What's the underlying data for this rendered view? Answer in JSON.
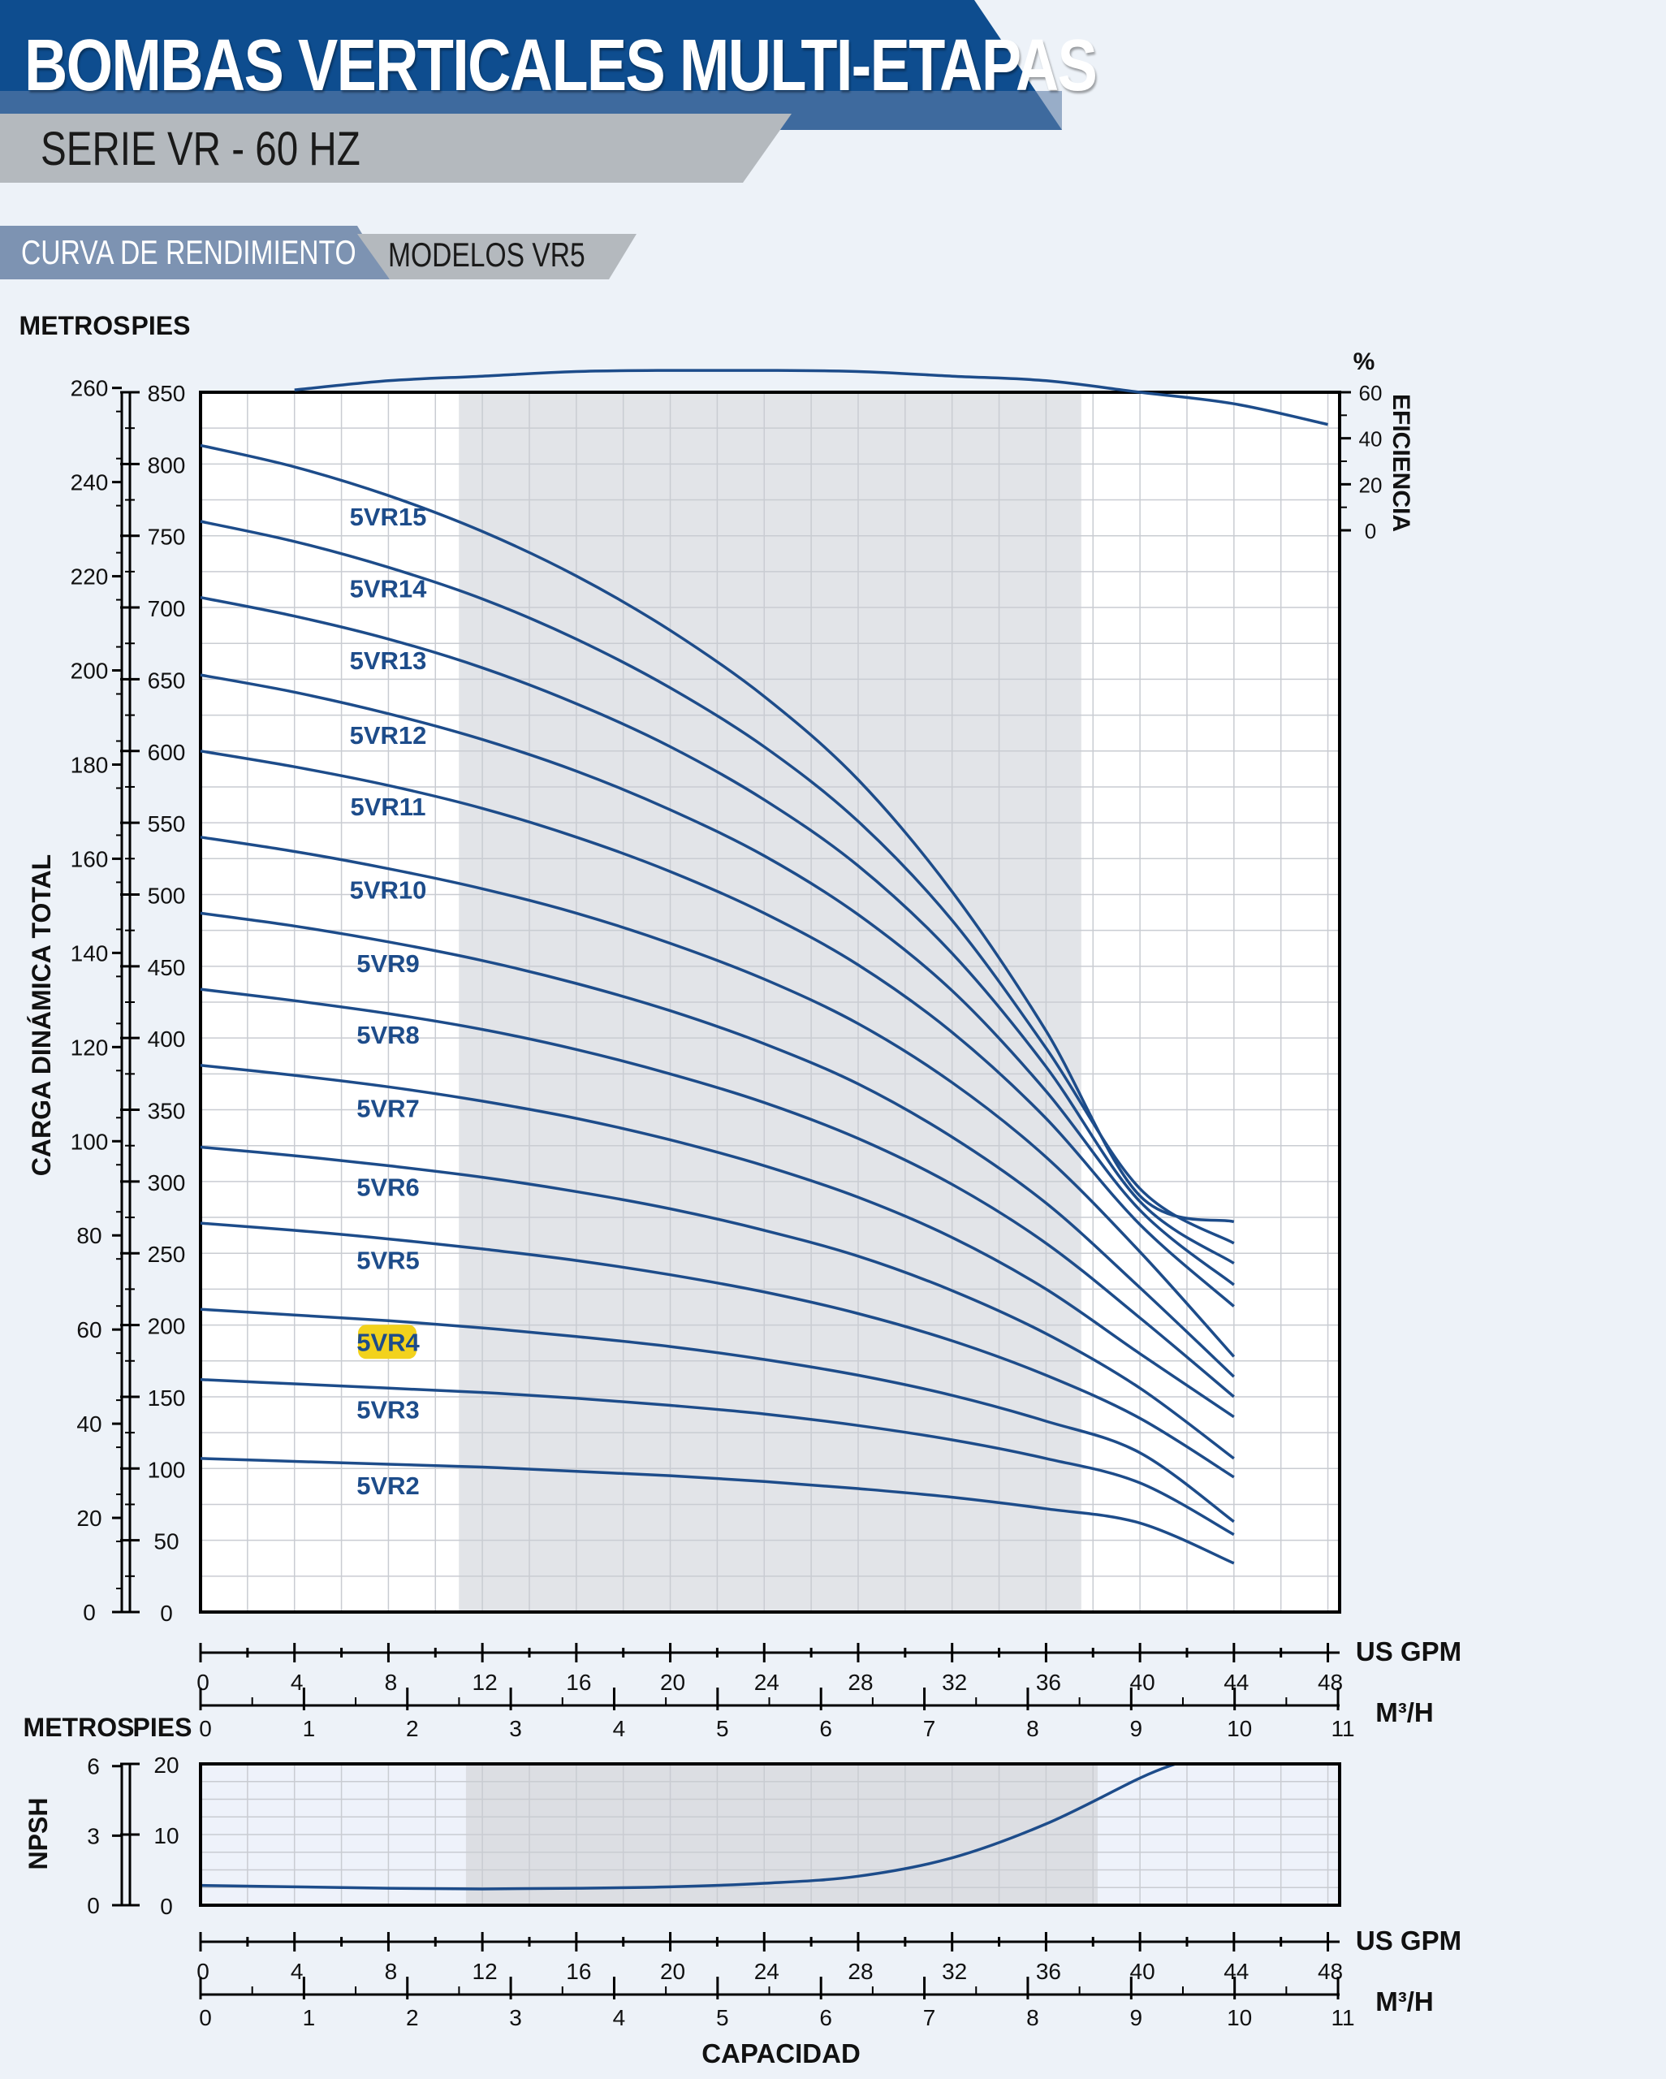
{
  "header": {
    "title": "BOMBAS VERTICALES MULTI-ETAPAS",
    "subtitle": "SERIE VR - 60 HZ",
    "tab_curve": "CURVA DE RENDIMIENTO",
    "tab_models": "MODELOS VR5"
  },
  "colors": {
    "curve": "#1d4c8a",
    "banner_blue": "#0e4d8f",
    "banner_gray": "#b4b9be",
    "tab_blue": "#7d93b2",
    "highlight": "#f2d21c",
    "shade": "#e2e4e8"
  },
  "chart_data": [
    {
      "type": "line",
      "title": "",
      "ylabel": "CARGA DINÁMICA TOTAL",
      "y_unit_labels": [
        "METROS",
        "PIES"
      ],
      "y_meters_ticks": [
        "0",
        "20",
        "40",
        "60",
        "80",
        "100",
        "120",
        "140",
        "160",
        "180",
        "200",
        "220",
        "240",
        "260"
      ],
      "y_feet_ticks": [
        "0",
        "50",
        "100",
        "150",
        "200",
        "250",
        "300",
        "350",
        "400",
        "450",
        "500",
        "550",
        "600",
        "650",
        "700",
        "750",
        "800",
        "850"
      ],
      "ylim_feet": [
        0,
        850
      ],
      "xlabel_gpm": "US GPM",
      "xlabel_m3h": "M³/H",
      "x_gpm_ticks": [
        "0",
        "4",
        "8",
        "12",
        "16",
        "20",
        "24",
        "28",
        "32",
        "36",
        "40",
        "44",
        "48"
      ],
      "x_m3h_ticks": [
        "0",
        "1",
        "2",
        "3",
        "4",
        "5",
        "6",
        "7",
        "8",
        "9",
        "10",
        "11"
      ],
      "xlim_gpm": [
        0,
        48.5
      ],
      "recommended_range_gpm": [
        11,
        37.5
      ],
      "head_unit": "feet",
      "efficiency_axis": {
        "label": "EFICIENCIA",
        "unit": "%",
        "ticks": [
          "0",
          "20",
          "40",
          "60"
        ]
      },
      "highlighted_series": "5VR4",
      "series": [
        {
          "name": "5VR15",
          "x": [
            0,
            4,
            8,
            12,
            16,
            20,
            24,
            28,
            32,
            36,
            40,
            44
          ],
          "values": [
            813,
            798,
            778,
            753,
            722,
            684,
            638,
            580,
            502,
            405,
            290,
            272
          ]
        },
        {
          "name": "5VR14",
          "x": [
            0,
            4,
            8,
            12,
            16,
            20,
            24,
            28,
            32,
            36,
            40,
            44
          ],
          "values": [
            760,
            746,
            728,
            706,
            678,
            644,
            603,
            551,
            482,
            393,
            295,
            257
          ]
        },
        {
          "name": "5VR13",
          "x": [
            0,
            4,
            8,
            12,
            16,
            20,
            24,
            28,
            32,
            36,
            40,
            44
          ],
          "values": [
            707,
            694,
            678,
            658,
            633,
            603,
            566,
            520,
            459,
            380,
            286,
            243
          ]
        },
        {
          "name": "5VR12",
          "x": [
            0,
            4,
            8,
            12,
            16,
            20,
            24,
            28,
            32,
            36,
            40,
            44
          ],
          "values": [
            653,
            641,
            626,
            608,
            586,
            559,
            527,
            486,
            433,
            363,
            280,
            228
          ]
        },
        {
          "name": "5VR11",
          "x": [
            0,
            4,
            8,
            12,
            16,
            20,
            24,
            28,
            32,
            36,
            40,
            44
          ],
          "values": [
            600,
            589,
            576,
            560,
            540,
            516,
            487,
            451,
            404,
            344,
            270,
            213
          ]
        },
        {
          "name": "5VR10",
          "x": [
            0,
            4,
            8,
            12,
            16,
            20,
            24,
            28,
            32,
            36,
            40,
            44
          ],
          "values": [
            540,
            530,
            518,
            504,
            487,
            466,
            441,
            410,
            369,
            317,
            251,
            178
          ]
        },
        {
          "name": "5VR9",
          "x": [
            0,
            4,
            8,
            12,
            16,
            20,
            24,
            28,
            32,
            36,
            40,
            44
          ],
          "values": [
            487,
            478,
            467,
            454,
            438,
            419,
            396,
            368,
            331,
            285,
            226,
            164
          ]
        },
        {
          "name": "5VR8",
          "x": [
            0,
            4,
            8,
            12,
            16,
            20,
            24,
            28,
            32,
            36,
            40,
            44
          ],
          "values": [
            434,
            426,
            417,
            406,
            392,
            375,
            355,
            330,
            298,
            257,
            205,
            150
          ]
        },
        {
          "name": "5VR7",
          "x": [
            0,
            4,
            8,
            12,
            16,
            20,
            24,
            28,
            32,
            36,
            40,
            44
          ],
          "values": [
            381,
            374,
            366,
            356,
            344,
            329,
            311,
            289,
            261,
            225,
            180,
            136
          ]
        },
        {
          "name": "5VR6",
          "x": [
            0,
            4,
            8,
            12,
            16,
            20,
            24,
            28,
            32,
            36,
            40,
            44
          ],
          "values": [
            324,
            318,
            311,
            303,
            293,
            281,
            266,
            248,
            224,
            194,
            156,
            107
          ]
        },
        {
          "name": "5VR5",
          "x": [
            0,
            4,
            8,
            12,
            16,
            20,
            24,
            28,
            32,
            36,
            40,
            44
          ],
          "values": [
            271,
            266,
            260,
            253,
            245,
            235,
            223,
            208,
            189,
            165,
            135,
            94
          ]
        },
        {
          "name": "5VR4",
          "x": [
            0,
            4,
            8,
            12,
            16,
            20,
            24,
            28,
            32,
            36,
            40,
            44
          ],
          "values": [
            211,
            207,
            203,
            198,
            192,
            185,
            176,
            165,
            151,
            133,
            111,
            63
          ]
        },
        {
          "name": "5VR3",
          "x": [
            0,
            4,
            8,
            12,
            16,
            20,
            24,
            28,
            32,
            36,
            40,
            44
          ],
          "values": [
            162,
            159,
            156,
            153,
            149,
            144,
            138,
            130,
            120,
            107,
            90,
            54
          ]
        },
        {
          "name": "5VR2",
          "x": [
            0,
            4,
            8,
            12,
            16,
            20,
            24,
            28,
            32,
            36,
            40,
            44
          ],
          "values": [
            107,
            105,
            103,
            101,
            98,
            95,
            91,
            86,
            80,
            72,
            62,
            34
          ]
        }
      ],
      "efficiency_curve": {
        "name": "EFICIENCIA",
        "x": [
          4,
          8,
          12,
          16,
          20,
          24,
          28,
          32,
          36,
          40,
          44,
          48
        ],
        "values": [
          61,
          65,
          67,
          69,
          69.5,
          69.5,
          69,
          67,
          65,
          60,
          55,
          46
        ]
      }
    },
    {
      "type": "line",
      "title": "",
      "ylabel": "NPSH",
      "y_unit_labels": [
        "METROS",
        "PIES"
      ],
      "y_meters_ticks": [
        "0",
        "3",
        "6"
      ],
      "y_feet_ticks": [
        "0",
        "10",
        "20"
      ],
      "ylim_feet": [
        0,
        20
      ],
      "xlabel": "CAPACIDAD",
      "xlabel_gpm": "US GPM",
      "xlabel_m3h": "M³/H",
      "x_gpm_ticks": [
        "0",
        "4",
        "8",
        "12",
        "16",
        "20",
        "24",
        "28",
        "32",
        "36",
        "40",
        "44",
        "48"
      ],
      "x_m3h_ticks": [
        "0",
        "1",
        "2",
        "3",
        "4",
        "5",
        "6",
        "7",
        "8",
        "9",
        "10",
        "11"
      ],
      "recommended_range_gpm": [
        11.3,
        38.2
      ],
      "series": [
        {
          "name": "NPSH",
          "x": [
            0,
            4,
            8,
            12,
            16,
            20,
            24,
            28,
            32,
            36,
            40,
            41.5
          ],
          "values": [
            2.8,
            2.6,
            2.4,
            2.3,
            2.4,
            2.6,
            3.1,
            4.1,
            6.7,
            11.5,
            18.0,
            20.0
          ]
        }
      ]
    }
  ]
}
